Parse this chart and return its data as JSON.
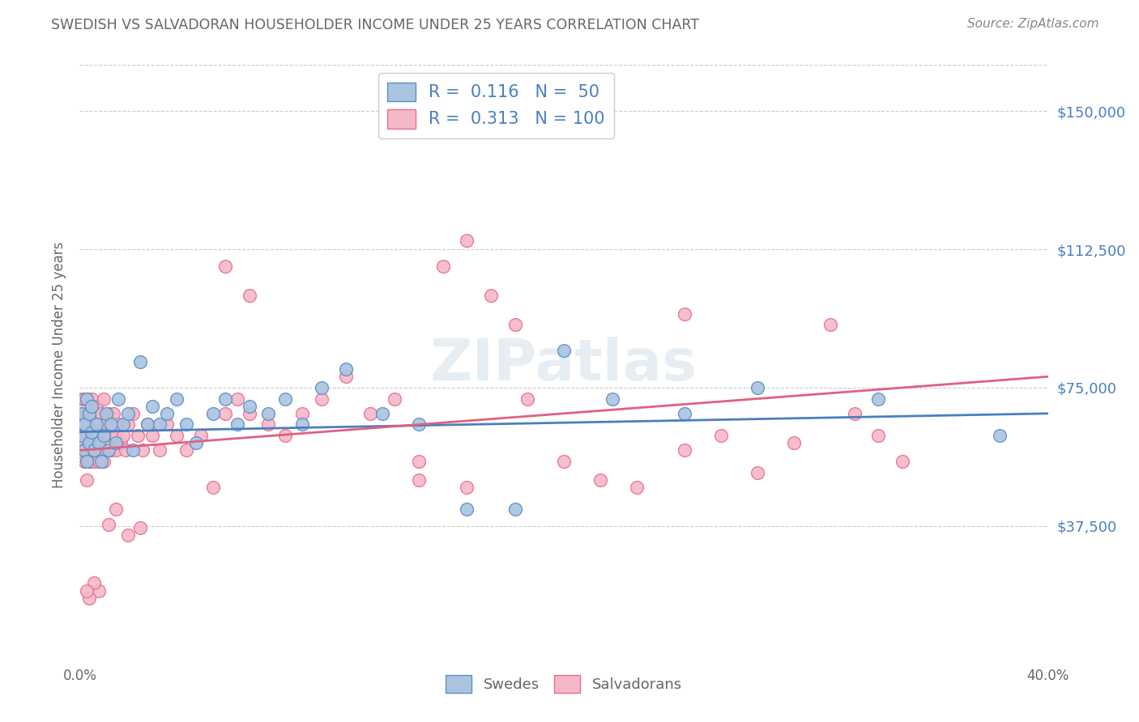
{
  "title": "SWEDISH VS SALVADORAN HOUSEHOLDER INCOME UNDER 25 YEARS CORRELATION CHART",
  "source": "Source: ZipAtlas.com",
  "ylabel": "Householder Income Under 25 years",
  "ytick_labels": [
    "$37,500",
    "$75,000",
    "$112,500",
    "$150,000"
  ],
  "ytick_values": [
    37500,
    75000,
    112500,
    150000
  ],
  "ymin": 0,
  "ymax": 162500,
  "xmin": 0.0,
  "xmax": 0.4,
  "blue_color": "#aac4e0",
  "pink_color": "#f5b8c8",
  "blue_edge_color": "#5b8fc9",
  "pink_edge_color": "#e8708a",
  "blue_line_color": "#4a7fc1",
  "pink_line_color": "#e06080",
  "legend_text_color": "#4a7fc1",
  "title_color": "#666666",
  "source_color": "#888888",
  "R_blue": 0.116,
  "N_blue": 50,
  "R_pink": 0.313,
  "N_pink": 100,
  "watermark": "ZIPatlas",
  "blue_scatter_x": [
    0.001,
    0.001,
    0.002,
    0.002,
    0.003,
    0.003,
    0.004,
    0.004,
    0.005,
    0.005,
    0.006,
    0.007,
    0.008,
    0.009,
    0.01,
    0.011,
    0.012,
    0.013,
    0.015,
    0.016,
    0.018,
    0.02,
    0.022,
    0.025,
    0.028,
    0.03,
    0.033,
    0.036,
    0.04,
    0.044,
    0.048,
    0.055,
    0.06,
    0.065,
    0.07,
    0.078,
    0.085,
    0.092,
    0.1,
    0.11,
    0.125,
    0.14,
    0.16,
    0.18,
    0.2,
    0.22,
    0.25,
    0.28,
    0.33,
    0.38
  ],
  "blue_scatter_y": [
    62000,
    68000,
    58000,
    65000,
    55000,
    72000,
    60000,
    68000,
    63000,
    70000,
    58000,
    65000,
    60000,
    55000,
    62000,
    68000,
    58000,
    65000,
    60000,
    72000,
    65000,
    68000,
    58000,
    82000,
    65000,
    70000,
    65000,
    68000,
    72000,
    65000,
    60000,
    68000,
    72000,
    65000,
    70000,
    68000,
    72000,
    65000,
    75000,
    80000,
    68000,
    65000,
    42000,
    42000,
    85000,
    72000,
    68000,
    75000,
    72000,
    62000
  ],
  "pink_scatter_x": [
    0.001,
    0.001,
    0.001,
    0.002,
    0.002,
    0.002,
    0.002,
    0.003,
    0.003,
    0.003,
    0.003,
    0.003,
    0.004,
    0.004,
    0.004,
    0.004,
    0.005,
    0.005,
    0.005,
    0.005,
    0.005,
    0.006,
    0.006,
    0.006,
    0.007,
    0.007,
    0.007,
    0.008,
    0.008,
    0.008,
    0.009,
    0.009,
    0.01,
    0.01,
    0.01,
    0.011,
    0.011,
    0.012,
    0.012,
    0.013,
    0.013,
    0.014,
    0.015,
    0.015,
    0.016,
    0.017,
    0.018,
    0.019,
    0.02,
    0.022,
    0.024,
    0.026,
    0.028,
    0.03,
    0.033,
    0.036,
    0.04,
    0.044,
    0.05,
    0.055,
    0.06,
    0.065,
    0.07,
    0.078,
    0.085,
    0.092,
    0.1,
    0.11,
    0.12,
    0.13,
    0.14,
    0.15,
    0.16,
    0.17,
    0.185,
    0.2,
    0.215,
    0.23,
    0.25,
    0.265,
    0.28,
    0.295,
    0.31,
    0.32,
    0.33,
    0.34,
    0.25,
    0.18,
    0.14,
    0.16,
    0.06,
    0.07,
    0.025,
    0.02,
    0.015,
    0.012,
    0.008,
    0.006,
    0.004,
    0.003
  ],
  "pink_scatter_y": [
    60000,
    72000,
    68000,
    58000,
    65000,
    55000,
    72000,
    50000,
    62000,
    68000,
    55000,
    72000,
    60000,
    68000,
    55000,
    65000,
    58000,
    68000,
    55000,
    72000,
    62000,
    58000,
    68000,
    55000,
    62000,
    70000,
    58000,
    65000,
    55000,
    62000,
    68000,
    58000,
    62000,
    72000,
    55000,
    65000,
    58000,
    62000,
    68000,
    58000,
    65000,
    68000,
    62000,
    58000,
    65000,
    60000,
    62000,
    58000,
    65000,
    68000,
    62000,
    58000,
    65000,
    62000,
    58000,
    65000,
    62000,
    58000,
    62000,
    48000,
    68000,
    72000,
    68000,
    65000,
    62000,
    68000,
    72000,
    78000,
    68000,
    72000,
    55000,
    108000,
    115000,
    100000,
    72000,
    55000,
    50000,
    48000,
    58000,
    62000,
    52000,
    60000,
    92000,
    68000,
    62000,
    55000,
    95000,
    92000,
    50000,
    48000,
    108000,
    100000,
    37000,
    35000,
    42000,
    38000,
    20000,
    22000,
    18000,
    20000
  ]
}
